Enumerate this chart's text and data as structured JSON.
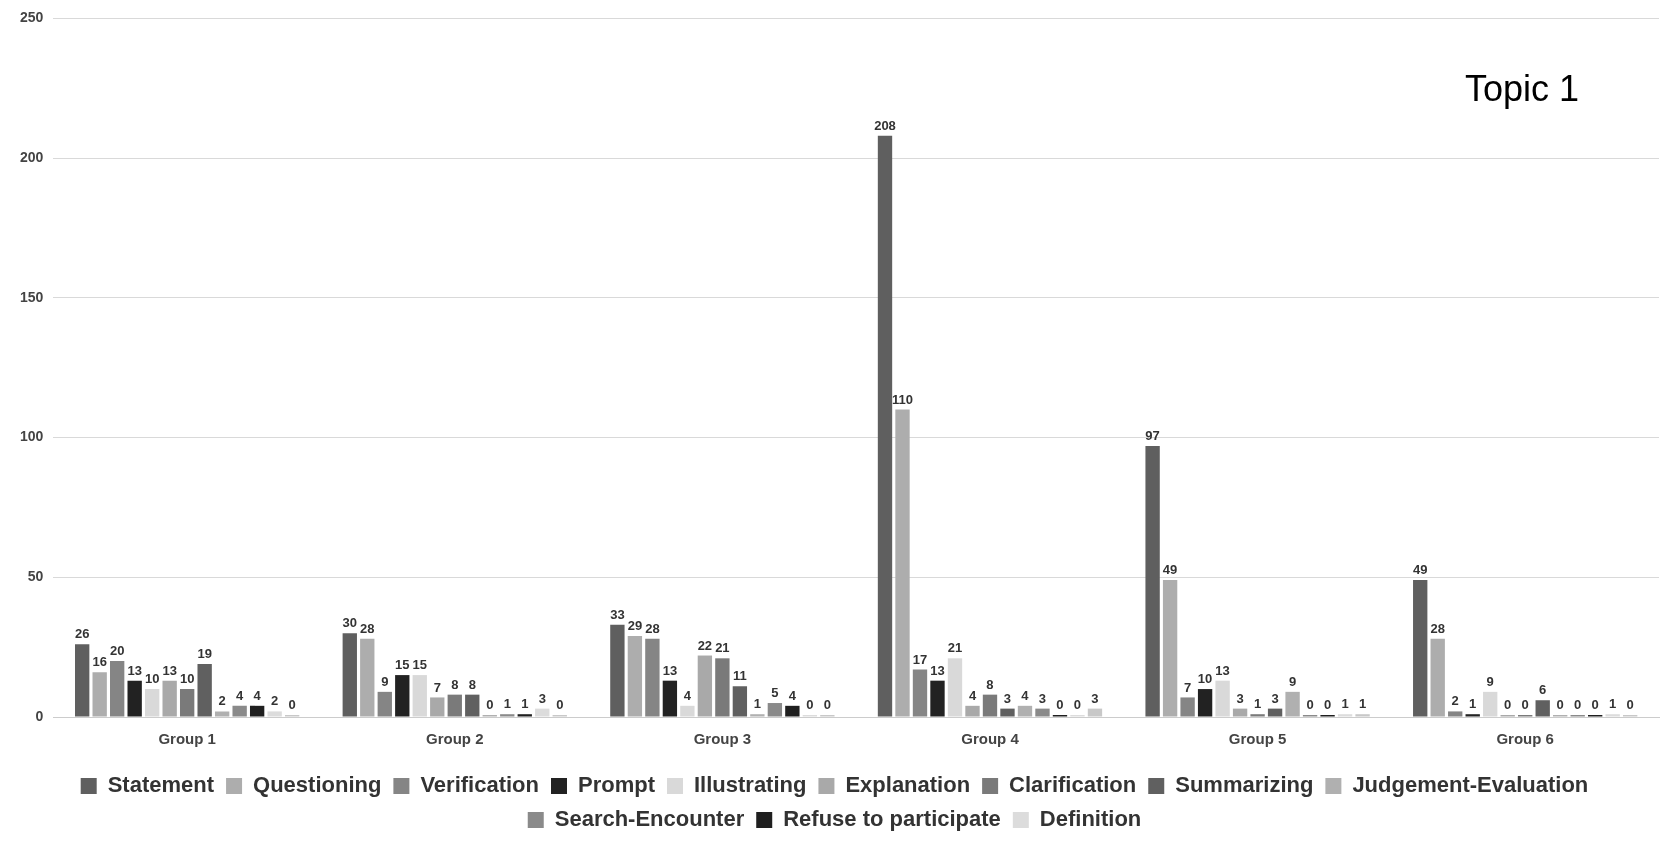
{
  "chart_data": {
    "type": "bar",
    "title": "Topic 1",
    "categories": [
      "Group 1",
      "Group 2",
      "Group 3",
      "Group 4",
      "Group 5",
      "Group 6"
    ],
    "series": [
      {
        "name": "Statement",
        "color": "#5f5f5f",
        "values": [
          26,
          30,
          33,
          208,
          97,
          49
        ]
      },
      {
        "name": "Questioning",
        "color": "#adadad",
        "values": [
          16,
          28,
          29,
          110,
          49,
          28
        ]
      },
      {
        "name": "Verification",
        "color": "#858585",
        "values": [
          20,
          9,
          28,
          17,
          7,
          2
        ]
      },
      {
        "name": "Prompt",
        "color": "#222222",
        "values": [
          13,
          15,
          13,
          13,
          10,
          1
        ]
      },
      {
        "name": "Illustrating",
        "color": "#d9d9d9",
        "values": [
          10,
          15,
          4,
          21,
          13,
          9
        ]
      },
      {
        "name": "Explanation",
        "color": "#a9a9a9",
        "values": [
          13,
          7,
          22,
          4,
          3,
          0
        ]
      },
      {
        "name": "Clarification",
        "color": "#7a7a7a",
        "values": [
          10,
          8,
          21,
          8,
          1,
          0
        ]
      },
      {
        "name": "Summarizing",
        "color": "#606060",
        "values": [
          19,
          8,
          11,
          3,
          3,
          6
        ]
      },
      {
        "name": "Judgement-Evaluation",
        "color": "#b0b0b0",
        "values": [
          2,
          0,
          1,
          4,
          9,
          0
        ]
      },
      {
        "name": "Search-Encounter",
        "color": "#8a8a8a",
        "values": [
          4,
          1,
          5,
          3,
          0,
          0
        ]
      },
      {
        "name": "Refuse to participate",
        "color": "#1f1f1f",
        "values": [
          4,
          1,
          4,
          0,
          0,
          0
        ]
      },
      {
        "name": "Definition",
        "color": "#dcdcdc",
        "values": [
          2,
          3,
          0,
          0,
          1,
          1
        ]
      },
      {
        "color": "#c8c8c8",
        "values": [
          0,
          0,
          0,
          3,
          1,
          0
        ]
      }
    ],
    "ylim": [
      0,
      250
    ],
    "yticks": [
      0,
      50,
      100,
      150,
      200,
      250
    ],
    "grid": "y",
    "legend": "bottom",
    "data_labels": true
  }
}
